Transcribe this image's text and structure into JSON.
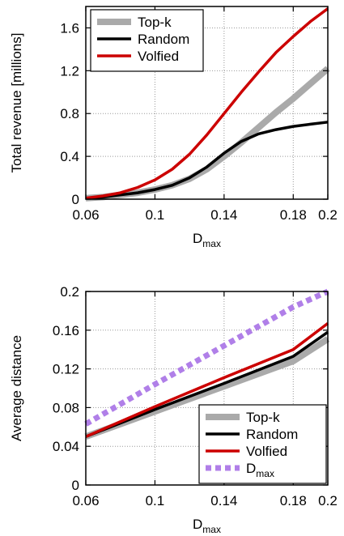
{
  "chart_data": [
    {
      "type": "line",
      "title": "",
      "xlabel": "D",
      "xlabel_sub": "max",
      "ylabel": "Total revenue [millions]",
      "xlim": [
        0.06,
        0.2
      ],
      "ylim": [
        0,
        1.8
      ],
      "xticks": [
        "0.06",
        "0.1",
        "0.14",
        "0.18",
        "0.2"
      ],
      "xtick_values": [
        0.06,
        0.1,
        0.14,
        0.18,
        0.2
      ],
      "yticks": [
        "0",
        "0.4",
        "0.8",
        "1.2",
        "1.6"
      ],
      "ytick_values": [
        0,
        0.4,
        0.8,
        1.2,
        1.6
      ],
      "grid": true,
      "legend_position": "top-left",
      "series": [
        {
          "name": "Top-k",
          "color": "#aaaaaa",
          "style": "thick-solid",
          "x": [
            0.06,
            0.07,
            0.08,
            0.09,
            0.1,
            0.11,
            0.12,
            0.13,
            0.14,
            0.15,
            0.16,
            0.17,
            0.18,
            0.19,
            0.2
          ],
          "y": [
            0.01,
            0.02,
            0.04,
            0.06,
            0.09,
            0.13,
            0.19,
            0.28,
            0.4,
            0.53,
            0.67,
            0.81,
            0.94,
            1.08,
            1.22
          ]
        },
        {
          "name": "Random",
          "color": "#000000",
          "style": "solid",
          "x": [
            0.06,
            0.07,
            0.08,
            0.09,
            0.1,
            0.11,
            0.12,
            0.13,
            0.14,
            0.15,
            0.16,
            0.17,
            0.18,
            0.19,
            0.2
          ],
          "y": [
            0.01,
            0.02,
            0.04,
            0.06,
            0.09,
            0.13,
            0.2,
            0.3,
            0.43,
            0.54,
            0.61,
            0.65,
            0.68,
            0.7,
            0.72
          ]
        },
        {
          "name": "Volfied",
          "color": "#cc0000",
          "style": "solid",
          "x": [
            0.06,
            0.07,
            0.08,
            0.09,
            0.1,
            0.11,
            0.12,
            0.13,
            0.14,
            0.15,
            0.16,
            0.17,
            0.18,
            0.19,
            0.2
          ],
          "y": [
            0.01,
            0.03,
            0.06,
            0.11,
            0.18,
            0.28,
            0.42,
            0.6,
            0.8,
            1.0,
            1.19,
            1.37,
            1.52,
            1.66,
            1.78
          ]
        }
      ]
    },
    {
      "type": "line",
      "title": "",
      "xlabel": "D",
      "xlabel_sub": "max",
      "ylabel": "Average distance",
      "xlim": [
        0.06,
        0.2
      ],
      "ylim": [
        0,
        0.2
      ],
      "xticks": [
        "0.06",
        "0.1",
        "0.14",
        "0.18",
        "0.2"
      ],
      "xtick_values": [
        0.06,
        0.1,
        0.14,
        0.18,
        0.2
      ],
      "yticks": [
        "0",
        "0.04",
        "0.08",
        "0.12",
        "0.16",
        "0.2"
      ],
      "ytick_values": [
        0,
        0.04,
        0.08,
        0.12,
        0.16,
        0.2
      ],
      "grid": true,
      "legend_position": "bottom-right",
      "series": [
        {
          "name": "Top-k",
          "color": "#aaaaaa",
          "style": "thick-solid",
          "x": [
            0.06,
            0.1,
            0.14,
            0.18,
            0.2
          ],
          "y": [
            0.05,
            0.076,
            0.102,
            0.128,
            0.151
          ]
        },
        {
          "name": "Random",
          "color": "#000000",
          "style": "solid",
          "x": [
            0.06,
            0.1,
            0.14,
            0.18,
            0.2
          ],
          "y": [
            0.05,
            0.078,
            0.105,
            0.133,
            0.158
          ]
        },
        {
          "name": "Volfied",
          "color": "#cc0000",
          "style": "solid",
          "x": [
            0.06,
            0.1,
            0.14,
            0.18,
            0.2
          ],
          "y": [
            0.05,
            0.081,
            0.111,
            0.14,
            0.167
          ]
        },
        {
          "name": "D",
          "name_sub": "max",
          "color": "#b07fe8",
          "style": "dotted",
          "x": [
            0.06,
            0.1,
            0.14,
            0.18,
            0.2
          ],
          "y": [
            0.063,
            0.104,
            0.144,
            0.184,
            0.2
          ]
        }
      ]
    }
  ]
}
